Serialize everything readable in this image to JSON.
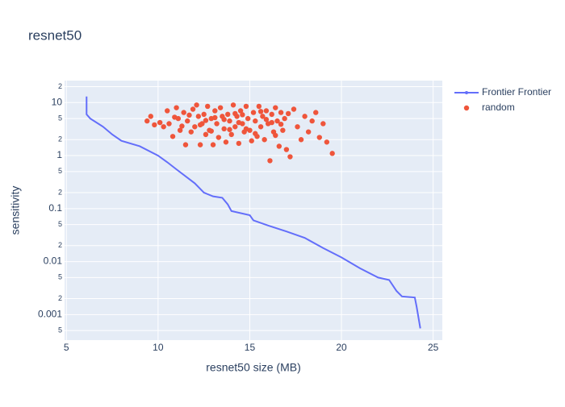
{
  "chart_data": {
    "type": "line-scatter",
    "title": "resnet50",
    "x_label": "resnet50 size (MB)",
    "y_label": "sensitivity",
    "log_y": true,
    "grid": true,
    "legend_position": "right",
    "xlim": [
      4.9,
      25.5
    ],
    "xticks": [
      5,
      10,
      15,
      20,
      25
    ],
    "ylim": [
      0.00033,
      26
    ],
    "yticks": [
      {
        "value": 0.0005,
        "label": "5"
      },
      0.001,
      {
        "value": 0.002,
        "label": "2"
      },
      {
        "value": 0.005,
        "label": "5"
      },
      0.01,
      {
        "value": 0.02,
        "label": "2"
      },
      {
        "value": 0.05,
        "label": "5"
      },
      0.1,
      {
        "value": 0.2,
        "label": "2"
      },
      {
        "value": 0.5,
        "label": "5"
      },
      1,
      {
        "value": 2,
        "label": "2"
      },
      {
        "value": 5,
        "label": "5"
      },
      10,
      {
        "value": 20,
        "label": "2"
      }
    ],
    "series": [
      {
        "name": "Frontier Frontier",
        "mode": "line",
        "color": "#636efa",
        "x": [
          6.1,
          6.1,
          6.3,
          7,
          7.5,
          8,
          9,
          10,
          10.5,
          11,
          12,
          12.5,
          13,
          13.5,
          13.8,
          14,
          15,
          15.2,
          16,
          17,
          18,
          19,
          20,
          21,
          22,
          22.6,
          23,
          23.3,
          24,
          24.1,
          24.3
        ],
        "values": [
          13,
          6,
          5,
          3.5,
          2.5,
          1.9,
          1.5,
          1.0,
          0.75,
          0.55,
          0.3,
          0.2,
          0.17,
          0.16,
          0.12,
          0.09,
          0.075,
          0.06,
          0.048,
          0.037,
          0.028,
          0.018,
          0.012,
          0.0075,
          0.005,
          0.0045,
          0.0028,
          0.0022,
          0.0021,
          0.0014,
          0.00055
        ]
      },
      {
        "name": "random",
        "mode": "markers",
        "color": "#ef553b",
        "x": [
          9.4,
          9.6,
          9.8,
          10.1,
          10.3,
          10.5,
          10.6,
          10.8,
          11.0,
          11.1,
          11.2,
          11.4,
          11.5,
          11.6,
          11.8,
          11.9,
          12.0,
          12.1,
          12.2,
          12.3,
          12.4,
          12.5,
          12.6,
          12.7,
          12.8,
          12.9,
          13.0,
          13.1,
          13.2,
          13.3,
          13.4,
          13.5,
          13.6,
          13.7,
          13.8,
          13.9,
          14.0,
          14.1,
          14.2,
          14.3,
          14.4,
          14.5,
          14.6,
          14.7,
          14.8,
          14.9,
          15.0,
          15.1,
          15.2,
          15.3,
          15.4,
          15.5,
          15.6,
          15.7,
          15.8,
          15.9,
          16.0,
          16.1,
          16.2,
          16.3,
          16.4,
          16.5,
          16.6,
          16.7,
          16.8,
          16.9,
          17.0,
          17.2,
          17.4,
          17.6,
          17.8,
          18.0,
          18.2,
          18.4,
          18.6,
          18.8,
          19.0,
          19.2,
          19.5,
          12.3,
          13.1,
          14.2,
          14.8,
          15.3,
          16.2,
          11.3,
          13.6,
          15.6,
          14.4,
          12.9,
          16.7,
          10.9,
          17.1,
          13.9,
          15.9,
          14.6,
          12.6,
          16.4,
          11.7
        ],
        "values": [
          4.5,
          5.5,
          3.8,
          4.2,
          3.5,
          7,
          4,
          2.3,
          8,
          5,
          3,
          6.5,
          1.6,
          4.5,
          2.8,
          7.5,
          3.5,
          9,
          5.5,
          1.6,
          4,
          6,
          2.5,
          8.5,
          3,
          5,
          1.6,
          7,
          4,
          2.2,
          8,
          5.5,
          3.2,
          1.8,
          6,
          4.5,
          2.5,
          9,
          3.5,
          5.5,
          1.7,
          7,
          4,
          2.8,
          8.5,
          5,
          3,
          1.9,
          6.5,
          4.5,
          2.3,
          8.5,
          3.5,
          5.5,
          2,
          7,
          4,
          0.8,
          6,
          2.8,
          8,
          4.5,
          1.5,
          6.5,
          3,
          5,
          1.3,
          0.95,
          7.5,
          3.5,
          2,
          5.5,
          2.8,
          4.5,
          6.5,
          2.2,
          4,
          1.8,
          1.1,
          3.8,
          5.2,
          6.2,
          3.2,
          2.6,
          4.2,
          3.6,
          4.8,
          6.8,
          4.2,
          2.9,
          3.9,
          5.3,
          6.2,
          3.1,
          4.8,
          5.9,
          4.6,
          2.4,
          5.8
        ]
      }
    ]
  }
}
